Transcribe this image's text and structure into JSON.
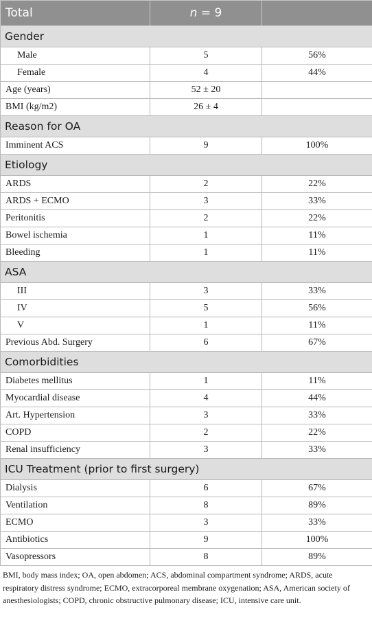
{
  "header": {
    "col1": "Total",
    "n_symbol": "n",
    "n_rest": " = 9",
    "col3": ""
  },
  "sections": [
    {
      "title": "Gender",
      "rows": [
        {
          "label": "Male",
          "count": "5",
          "pct": "56%",
          "indent": true
        },
        {
          "label": "Female",
          "count": "4",
          "pct": "44%",
          "indent": true
        },
        {
          "label": "Age (years)",
          "count": "52 ± 20",
          "pct": "",
          "indent": false
        },
        {
          "label": "BMI (kg/m2)",
          "count": "26 ± 4",
          "pct": "",
          "indent": false
        }
      ]
    },
    {
      "title": "Reason for OA",
      "rows": [
        {
          "label": "Imminent ACS",
          "count": "9",
          "pct": "100%",
          "indent": false
        }
      ]
    },
    {
      "title": "Etiology",
      "rows": [
        {
          "label": "ARDS",
          "count": "2",
          "pct": "22%",
          "indent": false
        },
        {
          "label": "ARDS + ECMO",
          "count": "3",
          "pct": "33%",
          "indent": false
        },
        {
          "label": "Peritonitis",
          "count": "2",
          "pct": "22%",
          "indent": false
        },
        {
          "label": "Bowel ischemia",
          "count": "1",
          "pct": "11%",
          "indent": false
        },
        {
          "label": "Bleeding",
          "count": "1",
          "pct": "11%",
          "indent": false
        }
      ]
    },
    {
      "title": "ASA",
      "rows": [
        {
          "label": "III",
          "count": "3",
          "pct": "33%",
          "indent": true
        },
        {
          "label": "IV",
          "count": "5",
          "pct": "56%",
          "indent": true
        },
        {
          "label": "V",
          "count": "1",
          "pct": "11%",
          "indent": true
        },
        {
          "label": "Previous Abd. Surgery",
          "count": "6",
          "pct": "67%",
          "indent": false
        }
      ]
    },
    {
      "title": "Comorbidities",
      "rows": [
        {
          "label": "Diabetes mellitus",
          "count": "1",
          "pct": "11%",
          "indent": false
        },
        {
          "label": "Myocardial disease",
          "count": "4",
          "pct": "44%",
          "indent": false
        },
        {
          "label": "Art. Hypertension",
          "count": "3",
          "pct": "33%",
          "indent": false
        },
        {
          "label": "COPD",
          "count": "2",
          "pct": "22%",
          "indent": false
        },
        {
          "label": "Renal insufficiency",
          "count": "3",
          "pct": "33%",
          "indent": false
        }
      ]
    },
    {
      "title": "ICU Treatment (prior to first surgery)",
      "rows": [
        {
          "label": "Dialysis",
          "count": "6",
          "pct": "67%",
          "indent": false
        },
        {
          "label": "Ventilation",
          "count": "8",
          "pct": "89%",
          "indent": false
        },
        {
          "label": "ECMO",
          "count": "3",
          "pct": "33%",
          "indent": false
        },
        {
          "label": "Antibiotics",
          "count": "9",
          "pct": "100%",
          "indent": false
        },
        {
          "label": "Vasopressors",
          "count": "8",
          "pct": "89%",
          "indent": false
        }
      ]
    }
  ],
  "footnote": "BMI, body mass index; OA, open abdomen; ACS, abdominal compartment syndrome; ARDS, acute respiratory distress syndrome; ECMO, extracorporeal membrane oxygenation; ASA, American society of anesthesiologists; COPD, chronic obstructive pulmonary disease; ICU, intensive care unit."
}
